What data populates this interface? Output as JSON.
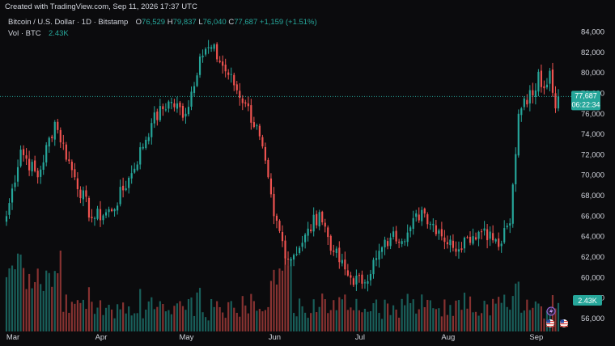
{
  "watermark": "Created with TradingView.com, Sep 11, 2026 17:37 UTC",
  "header": {
    "symbol": "Bitcoin / U.S. Dollar · 1D · Bitstamp",
    "open_label": "O",
    "open": "76,529",
    "high_label": "H",
    "high": "79,837",
    "low_label": "L",
    "low": "76,040",
    "close_label": "C",
    "close": "77,687",
    "change": "+1,159 (+1.51%)",
    "vol_label": "Vol · BTC",
    "vol_value": "2.43K"
  },
  "badges": {
    "price": "77,687",
    "countdown": "06:22:34",
    "volume": "2.43K"
  },
  "colors": {
    "up": "#26a69a",
    "down": "#ef5350",
    "background": "#0b0b0d",
    "text": "#d1d4dc"
  },
  "icons": [
    "lightning-event-icon",
    "us-flag-event-icon",
    "us-flag-event-icon"
  ],
  "chart_data": {
    "type": "candlestick",
    "title": "",
    "series": [
      {
        "name": "Vol · BTC"
      }
    ],
    "price_axis": {
      "ticks": [
        56000,
        58000,
        60000,
        62000,
        64000,
        66000,
        68000,
        70000,
        72000,
        74000,
        76000,
        78000,
        80000,
        82000,
        84000
      ],
      "tick_labels": [
        "56,000",
        "58,000",
        "60,000",
        "62,000",
        "64,000",
        "66,000",
        "68,000",
        "70,000",
        "72,000",
        "74,000",
        "76,000",
        "78,000",
        "80,000",
        "82,000",
        "84,000"
      ],
      "range": [
        55200,
        85200
      ],
      "last_price": 77687
    },
    "time_axis": {
      "labels": [
        "Mar",
        "Apr",
        "May",
        "Jun",
        "Jul",
        "Aug",
        "Sep"
      ],
      "start": "2026-03-01",
      "end": "2026-09-11"
    },
    "grid": false,
    "key_points": [
      {
        "date": "2026-03-01",
        "close": 66000
      },
      {
        "date": "2026-03-06",
        "close": 72500
      },
      {
        "date": "2026-03-12",
        "close": 69800
      },
      {
        "date": "2026-03-18",
        "close": 75200
      },
      {
        "date": "2026-03-24",
        "close": 70500
      },
      {
        "date": "2026-03-31",
        "close": 65800
      },
      {
        "date": "2026-04-07",
        "close": 66500
      },
      {
        "date": "2026-04-14",
        "close": 70200
      },
      {
        "date": "2026-04-21",
        "close": 75100
      },
      {
        "date": "2026-04-27",
        "close": 77200
      },
      {
        "date": "2026-05-03",
        "close": 76000
      },
      {
        "date": "2026-05-08",
        "close": 81600
      },
      {
        "date": "2026-05-12",
        "close": 82500
      },
      {
        "date": "2026-05-18",
        "close": 79800
      },
      {
        "date": "2026-05-24",
        "close": 77000
      },
      {
        "date": "2026-05-29",
        "close": 73800
      },
      {
        "date": "2026-06-03",
        "close": 66000
      },
      {
        "date": "2026-06-08",
        "close": 61800
      },
      {
        "date": "2026-06-13",
        "close": 63400
      },
      {
        "date": "2026-06-19",
        "close": 66400
      },
      {
        "date": "2026-06-24",
        "close": 62500
      },
      {
        "date": "2026-06-29",
        "close": 60200
      },
      {
        "date": "2026-07-04",
        "close": 59400
      },
      {
        "date": "2026-07-09",
        "close": 61900
      },
      {
        "date": "2026-07-14",
        "close": 63900
      },
      {
        "date": "2026-07-20",
        "close": 64400
      },
      {
        "date": "2026-07-25",
        "close": 66600
      },
      {
        "date": "2026-07-31",
        "close": 64600
      },
      {
        "date": "2026-08-05",
        "close": 62900
      },
      {
        "date": "2026-08-10",
        "close": 63900
      },
      {
        "date": "2026-08-16",
        "close": 64800
      },
      {
        "date": "2026-08-21",
        "close": 63000
      },
      {
        "date": "2026-08-25",
        "close": 65300
      },
      {
        "date": "2026-08-28",
        "close": 76000
      },
      {
        "date": "2026-08-30",
        "close": 77500
      },
      {
        "date": "2026-09-02",
        "close": 77800
      },
      {
        "date": "2026-09-04",
        "close": 80100
      },
      {
        "date": "2026-09-06",
        "close": 78500
      },
      {
        "date": "2026-09-08",
        "close": 80200
      },
      {
        "date": "2026-09-10",
        "close": 76529
      },
      {
        "date": "2026-09-11",
        "close": 77687
      }
    ]
  }
}
